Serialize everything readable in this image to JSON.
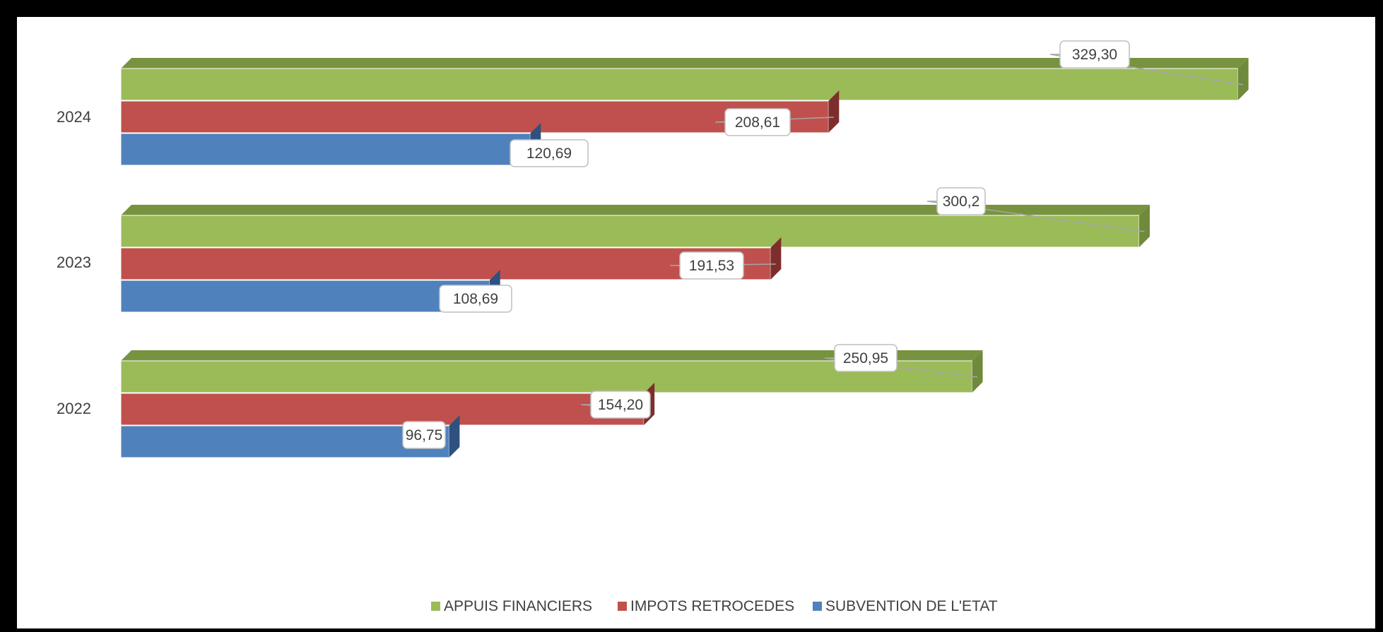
{
  "chart_data": {
    "type": "bar",
    "orientation": "horizontal",
    "style": "3d-clustered",
    "categories": [
      "2024",
      "2023",
      "2022"
    ],
    "series": [
      {
        "name": "APPUIS FINANCIERS",
        "color": "#9BBB59",
        "side_color": "#6F8A3A",
        "top_color": "#78933F",
        "values": [
          329.3,
          300.2,
          250.95
        ],
        "labels": [
          "329,30",
          "300,2",
          "250,95"
        ]
      },
      {
        "name": "IMPOTS RETROCEDES",
        "color": "#C0504D",
        "side_color": "#7D2E2C",
        "top_color": "#9A3B39",
        "values": [
          208.61,
          191.53,
          154.2
        ],
        "labels": [
          "208,61",
          "191,53",
          "154,20"
        ]
      },
      {
        "name": "SUBVENTION DE L'ETAT",
        "color": "#4F81BD",
        "side_color": "#2E5180",
        "top_color": "#3D6798",
        "values": [
          120.69,
          108.69,
          96.75
        ],
        "labels": [
          "120,69",
          "108,69",
          "96,75"
        ]
      }
    ],
    "xlim": [
      0,
      330
    ],
    "grid": false,
    "legend_position": "bottom"
  }
}
